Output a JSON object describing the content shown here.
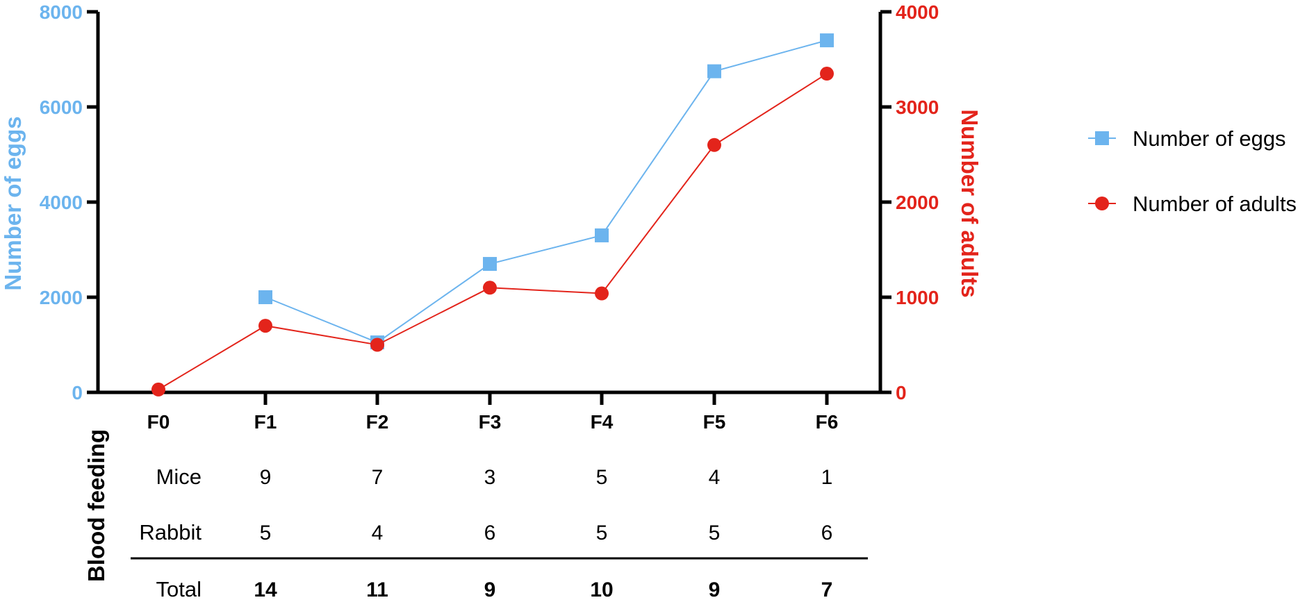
{
  "colors": {
    "eggs": "#6cb4ee",
    "adults": "#e3241b",
    "axis": "#000000"
  },
  "chart_data": {
    "type": "line",
    "categories": [
      "F0",
      "F1",
      "F2",
      "F3",
      "F4",
      "F5",
      "F6"
    ],
    "y_left": {
      "label": "Number of eggs",
      "ylim": [
        0,
        8000
      ],
      "ticks": [
        "0",
        "2000",
        "4000",
        "6000",
        "8000"
      ]
    },
    "y_right": {
      "label": "Number of adults",
      "ylim": [
        0,
        4000
      ],
      "ticks": [
        "0",
        "1000",
        "2000",
        "3000",
        "4000"
      ]
    },
    "series": [
      {
        "name": "Number of eggs",
        "axis": "left",
        "marker": "square",
        "values": [
          null,
          2000,
          1050,
          2700,
          3300,
          6750,
          7400
        ]
      },
      {
        "name": "Number of adults",
        "axis": "right",
        "marker": "circle",
        "values": [
          30,
          700,
          500,
          1100,
          1040,
          2600,
          3350
        ]
      }
    ],
    "legend_position": "right",
    "grid": false,
    "table": {
      "group_label": "Blood feeding",
      "rows": [
        {
          "label": "Mice",
          "values": [
            "9",
            "7",
            "3",
            "5",
            "4",
            "1"
          ]
        },
        {
          "label": "Rabbit",
          "values": [
            "5",
            "4",
            "6",
            "5",
            "5",
            "6"
          ]
        }
      ],
      "total": {
        "label": "Total",
        "values": [
          "14",
          "11",
          "9",
          "10",
          "9",
          "7"
        ]
      }
    }
  }
}
